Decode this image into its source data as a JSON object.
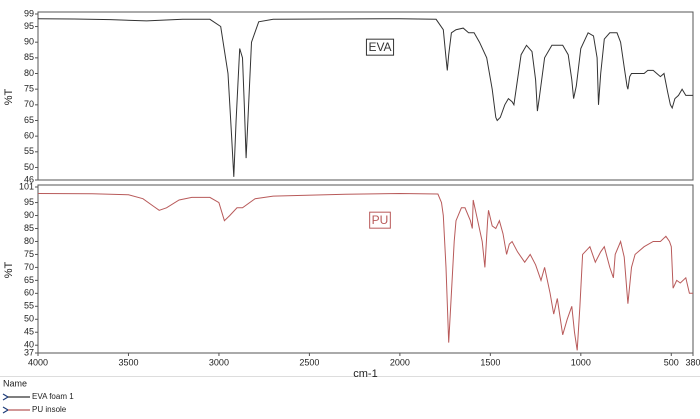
{
  "chart_data": [
    {
      "type": "line",
      "y_label": "%T",
      "annotation": "EVA",
      "xlim": [
        4000,
        380
      ],
      "ylim": [
        46,
        99
      ],
      "yticks": [
        99,
        95,
        90,
        85,
        80,
        75,
        70,
        65,
        60,
        55,
        50,
        46
      ],
      "series": [
        {
          "name": "EVA foam 1",
          "color": "#333333",
          "x": [
            4000,
            3800,
            3600,
            3400,
            3200,
            3050,
            2990,
            2950,
            2930,
            2918,
            2905,
            2885,
            2870,
            2860,
            2850,
            2840,
            2820,
            2780,
            2700,
            2400,
            2000,
            1800,
            1760,
            1745,
            1738,
            1730,
            1715,
            1690,
            1650,
            1620,
            1590,
            1560,
            1520,
            1490,
            1470,
            1462,
            1445,
            1420,
            1400,
            1380,
            1370,
            1355,
            1330,
            1300,
            1270,
            1250,
            1240,
            1230,
            1200,
            1160,
            1100,
            1070,
            1050,
            1040,
            1025,
            1000,
            960,
            930,
            910,
            902,
            890,
            870,
            840,
            800,
            780,
            760,
            745,
            740,
            730,
            720,
            700,
            650,
            630,
            600,
            580,
            560,
            540,
            520,
            505,
            495,
            480,
            460,
            440,
            420,
            400,
            380
          ],
          "values": [
            97.5,
            97.4,
            97.2,
            96.8,
            97.3,
            97.3,
            95,
            80,
            60,
            47,
            65,
            88,
            85,
            70,
            53,
            65,
            90,
            96.5,
            97.3,
            97.4,
            97.5,
            97.3,
            94,
            85,
            81,
            86,
            93,
            94,
            94.5,
            93,
            93,
            90,
            85,
            75,
            66,
            65,
            66,
            70,
            72,
            71,
            70,
            76,
            86,
            89,
            87,
            78,
            68,
            72,
            85,
            89,
            89,
            86,
            78,
            72,
            76,
            88,
            93,
            92,
            85,
            70,
            80,
            91,
            93,
            93,
            90,
            82,
            76,
            75,
            79,
            80,
            80,
            80,
            81,
            81,
            80,
            79,
            80,
            74,
            70,
            69,
            72,
            73,
            75,
            73,
            73,
            73
          ]
        }
      ]
    },
    {
      "type": "line",
      "y_label": "%T",
      "x_label": "cm-1",
      "annotation": "PU",
      "xlim": [
        4000,
        380
      ],
      "ylim": [
        37,
        101
      ],
      "xticks": [
        4000,
        3500,
        3000,
        2500,
        2000,
        1500,
        1000,
        500,
        380
      ],
      "yticks": [
        101,
        95,
        90,
        85,
        80,
        75,
        70,
        65,
        60,
        55,
        50,
        45,
        40,
        37
      ],
      "series": [
        {
          "name": "PU insole",
          "color": "#b85a5a",
          "x": [
            4000,
            3700,
            3500,
            3420,
            3360,
            3330,
            3290,
            3220,
            3150,
            3050,
            3000,
            2970,
            2940,
            2900,
            2870,
            2800,
            2700,
            2300,
            2000,
            1790,
            1770,
            1760,
            1745,
            1730,
            1715,
            1700,
            1690,
            1660,
            1640,
            1610,
            1600,
            1595,
            1570,
            1545,
            1530,
            1515,
            1510,
            1490,
            1470,
            1450,
            1430,
            1410,
            1395,
            1380,
            1350,
            1310,
            1280,
            1250,
            1220,
            1200,
            1170,
            1150,
            1130,
            1100,
            1075,
            1050,
            1035,
            1020,
            1005,
            990,
            950,
            920,
            890,
            870,
            840,
            820,
            810,
            780,
            760,
            740,
            720,
            700,
            650,
            600,
            560,
            530,
            510,
            500,
            490,
            470,
            450,
            420,
            400,
            380
          ],
          "values": [
            98.5,
            98.4,
            98,
            96.5,
            93.5,
            92,
            93,
            96,
            97,
            97,
            95,
            88,
            90,
            93,
            93,
            96.5,
            97.5,
            98.2,
            98.5,
            98.3,
            95,
            90,
            70,
            41,
            60,
            80,
            88,
            93,
            93,
            88,
            85,
            96,
            88,
            80,
            70,
            88,
            92,
            86,
            85,
            88,
            83,
            75,
            79,
            80,
            76,
            72,
            75,
            71,
            65,
            70,
            60,
            52,
            58,
            44,
            50,
            55,
            45,
            38,
            55,
            75,
            78,
            72,
            76,
            78,
            70,
            66,
            75,
            80,
            74,
            56,
            70,
            75,
            78,
            80,
            80,
            82,
            80,
            78,
            62,
            65,
            64,
            66,
            60,
            60
          ]
        }
      ]
    }
  ],
  "legend": {
    "title": "Name"
  }
}
